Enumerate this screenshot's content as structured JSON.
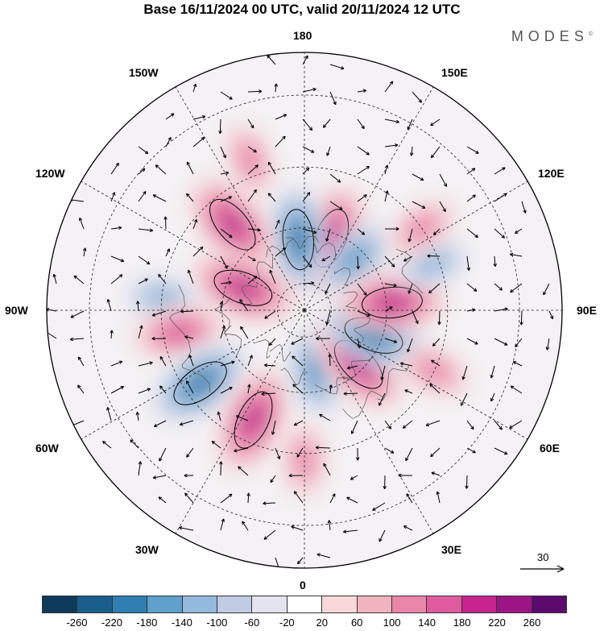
{
  "title": "Base 16/11/2024 00 UTC, valid 20/11/2024 12 UTC",
  "brand": "MODES",
  "brand_mark": "©",
  "longitude_labels": {
    "top": "180",
    "bottom": "0",
    "left": "90W",
    "right": "90E",
    "upper_left_1": "150W",
    "upper_left_2": "120W",
    "lower_left_1": "60W",
    "lower_left_2": "30W",
    "upper_right_1": "150E",
    "upper_right_2": "120E",
    "lower_right_1": "60E",
    "lower_right_2": "30E"
  },
  "reference_vector": {
    "label": "30"
  },
  "colorbar": {
    "colors": [
      "#0e3b5c",
      "#1a5e8c",
      "#2f7fb3",
      "#5fa1cc",
      "#93b9dc",
      "#c0cbe4",
      "#e4e4f0",
      "#ffffff",
      "#f8d8d8",
      "#f1b3bf",
      "#ea86a8",
      "#e05a9f",
      "#c8248f",
      "#9c1585",
      "#5c0a6e"
    ],
    "tick_labels": [
      "-260",
      "-220",
      "-180",
      "-140",
      "-100",
      "-60",
      "-20",
      "20",
      "60",
      "100",
      "140",
      "180",
      "220",
      "260"
    ]
  },
  "anomalies": [
    {
      "lon": 160,
      "lat": 62,
      "sign": 1,
      "strength": 3
    },
    {
      "lon": -175,
      "lat": 64,
      "sign": -1,
      "strength": 3
    },
    {
      "lon": 135,
      "lat": 64,
      "sign": -1,
      "strength": 2
    },
    {
      "lon": -140,
      "lat": 50,
      "sign": 1,
      "strength": 3
    },
    {
      "lon": -110,
      "lat": 66,
      "sign": 1,
      "strength": 3
    },
    {
      "lon": -95,
      "lat": 40,
      "sign": -1,
      "strength": 1
    },
    {
      "lon": -80,
      "lat": 45,
      "sign": 1,
      "strength": 2
    },
    {
      "lon": -55,
      "lat": 45,
      "sign": -1,
      "strength": 3
    },
    {
      "lon": -25,
      "lat": 47,
      "sign": 1,
      "strength": 3
    },
    {
      "lon": 10,
      "lat": 67,
      "sign": -1,
      "strength": 2
    },
    {
      "lon": 45,
      "lat": 62,
      "sign": 1,
      "strength": 3
    },
    {
      "lon": 70,
      "lat": 63,
      "sign": -1,
      "strength": 3
    },
    {
      "lon": 95,
      "lat": 58,
      "sign": 1,
      "strength": 3
    },
    {
      "lon": 65,
      "lat": 40,
      "sign": 1,
      "strength": 1
    },
    {
      "lon": 110,
      "lat": 42,
      "sign": -1,
      "strength": 1
    },
    {
      "lon": -160,
      "lat": 35,
      "sign": 1,
      "strength": 1
    },
    {
      "lon": 0,
      "lat": 38,
      "sign": 1,
      "strength": 1
    },
    {
      "lon": 125,
      "lat": 40,
      "sign": 1,
      "strength": 1
    }
  ]
}
